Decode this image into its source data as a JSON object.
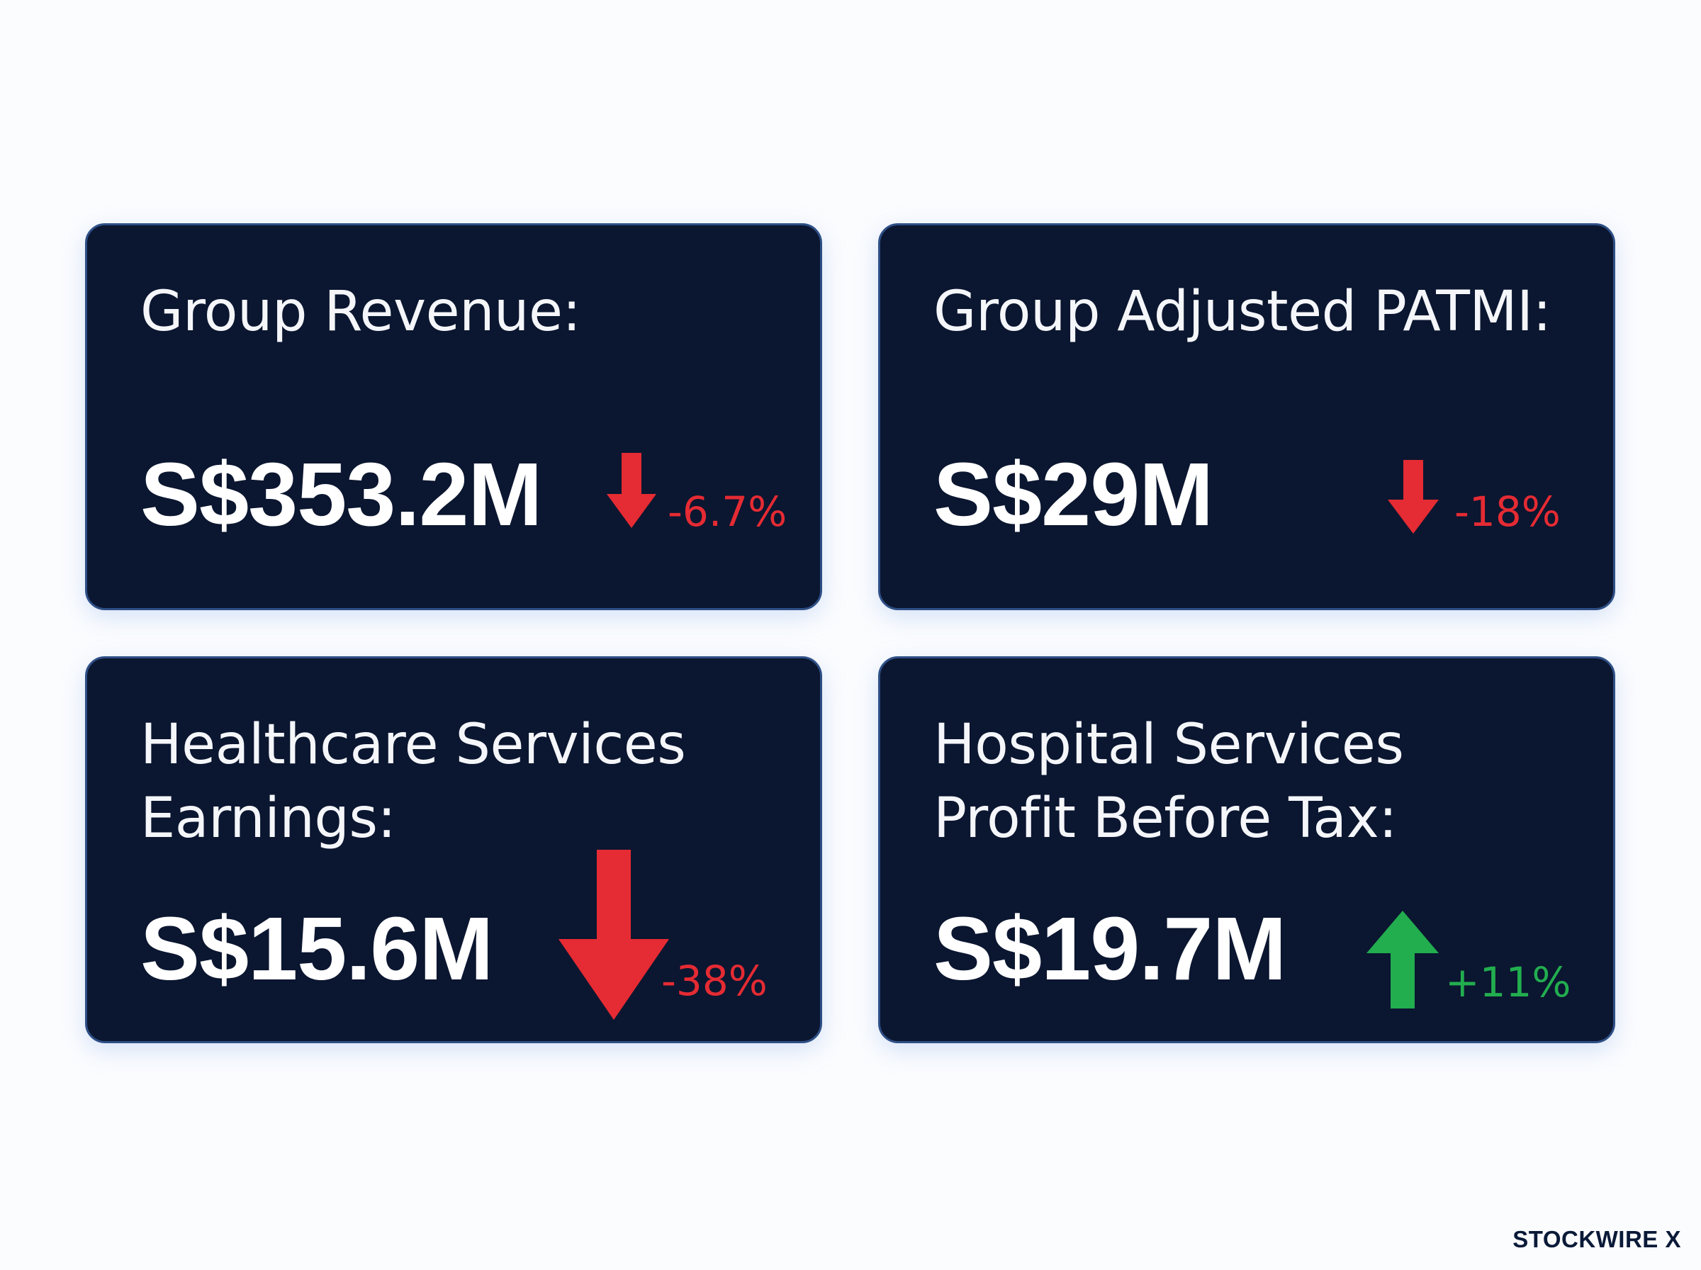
{
  "cards": [
    {
      "label": "Group Revenue:",
      "value": "S$353.2M",
      "change": "-6.7%",
      "direction": "down",
      "arrow_icon": "arrow-down-icon"
    },
    {
      "label": "Group Adjusted PATMI:",
      "value": "S$29M",
      "change": "-18%",
      "direction": "down",
      "arrow_icon": "arrow-down-icon"
    },
    {
      "label_lines": [
        "Healthcare Services",
        "Earnings:"
      ],
      "value": "S$15.6M",
      "change": "-38%",
      "direction": "down",
      "arrow_icon": "arrow-down-icon"
    },
    {
      "label_lines": [
        "Hospital Services",
        "Profit Before Tax:"
      ],
      "value": "S$19.7M",
      "change": "+11%",
      "direction": "up",
      "arrow_icon": "arrow-up-icon"
    }
  ],
  "brand": "STOCKWIRE X",
  "colors": {
    "page_background": "#fbfcfe",
    "card_background": "#0b1630",
    "card_border": "#2e4f86",
    "negative": "#e52b33",
    "positive": "#22ad4f",
    "brand_text": "#0a1a38"
  }
}
